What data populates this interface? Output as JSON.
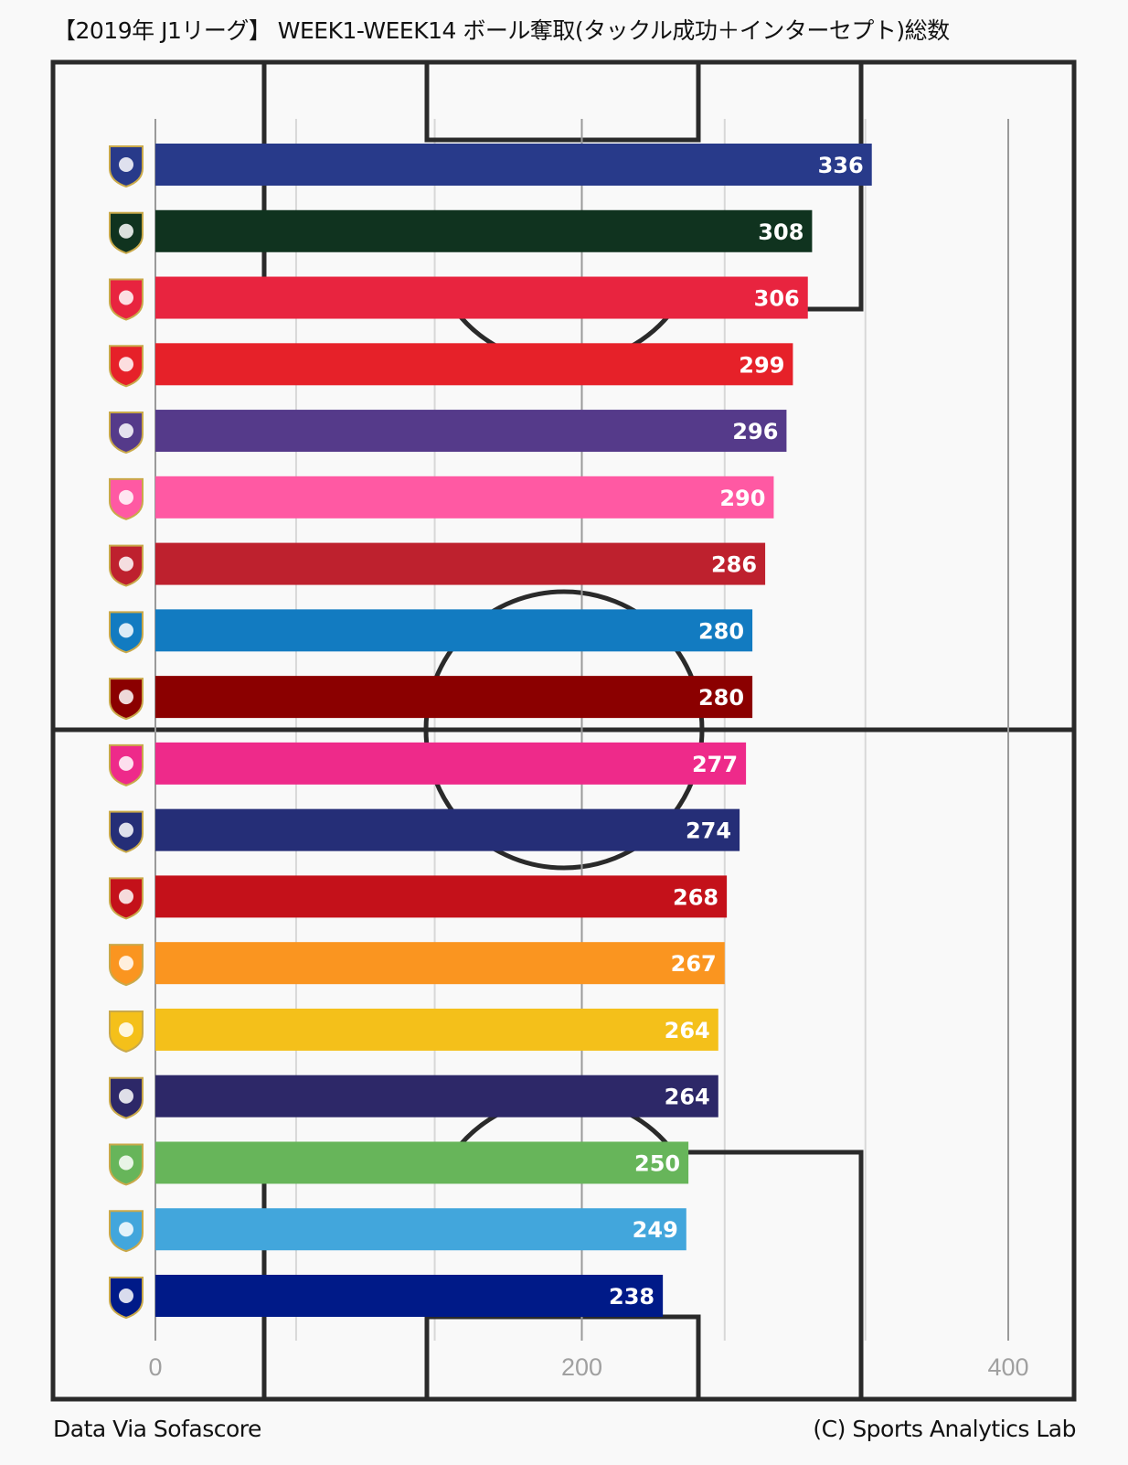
{
  "title": "【2019年 J1リーグ】 WEEK1-WEEK14 ボール奪取(タックル成功＋インターセプト)総数",
  "footer": {
    "source": "Data Via Sofascore",
    "credit": "(C) Sports Analytics Lab"
  },
  "chart_data": {
    "type": "bar",
    "orientation": "horizontal",
    "title": "【2019年 J1リーグ】 WEEK1-WEEK14 ボール奪取(タックル成功＋インターセプト)総数",
    "xlabel": "",
    "ylabel": "",
    "xlim": [
      0,
      420
    ],
    "xticks": [
      0,
      200,
      400
    ],
    "grid": true,
    "categories": [
      "gamba-osaka-logo-icon",
      "matsumoto-yamaga-logo-icon",
      "urawa-reds-logo-icon",
      "nagoya-grampus-logo-icon",
      "sanfrecce-hiroshima-logo-icon",
      "sagan-tosu-logo-icon",
      "kashima-antlers-logo-icon",
      "jubilo-iwata-logo-icon",
      "vissel-kobe-logo-icon",
      "cerezo-osaka-logo-icon",
      "yokohama-f-marinos-logo-icon",
      "consadole-sapporo-logo-icon",
      "shimizu-s-pulse-logo-icon",
      "vegalta-sendai-logo-icon",
      "fc-tokyo-logo-icon",
      "shonan-bellmare-logo-icon",
      "kawasaki-frontale-logo-icon",
      "oita-trinita-logo-icon"
    ],
    "values": [
      336,
      308,
      306,
      299,
      296,
      290,
      286,
      280,
      280,
      277,
      274,
      268,
      267,
      264,
      264,
      250,
      249,
      238
    ],
    "colors": [
      "#283a8a",
      "#10331f",
      "#e8243f",
      "#e62129",
      "#553a8a",
      "#ff59a3",
      "#be212e",
      "#127bc1",
      "#8b0000",
      "#ee2a8a",
      "#252e77",
      "#c4111a",
      "#fa9520",
      "#f4c01a",
      "#2d2868",
      "#67b55a",
      "#42a6dc",
      "#001a88"
    ]
  }
}
